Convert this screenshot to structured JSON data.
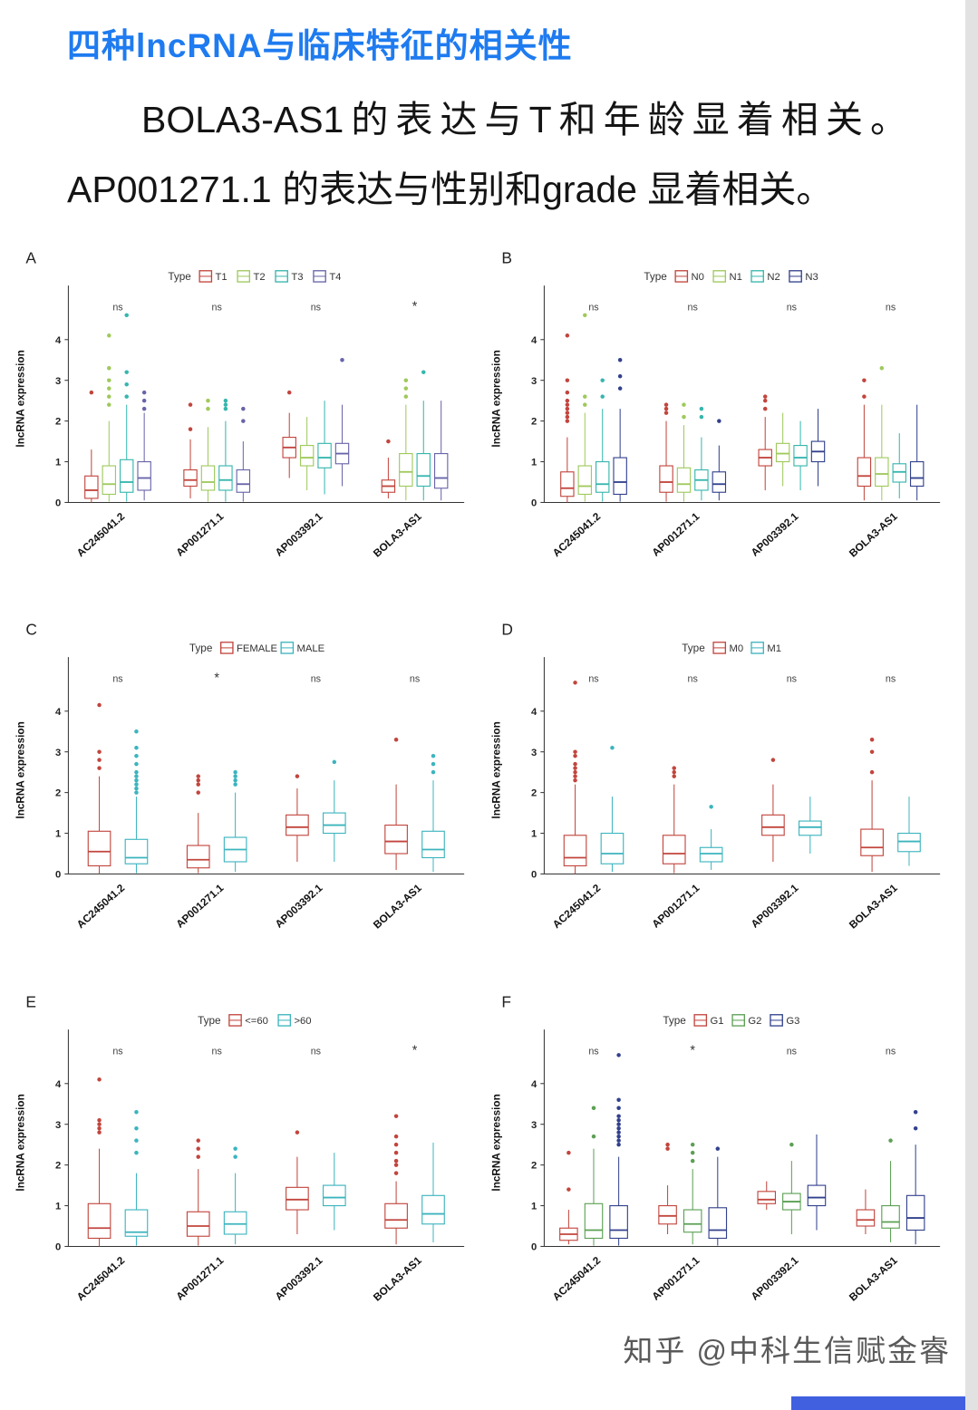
{
  "page": {
    "heading": "四种lncRNA与临床特征的相关性",
    "paragraph": "BOLA3-AS1的表达与T和年龄显着相关。AP001271.1 的表达与性别和grade 显着相关。",
    "watermark": "知乎 @中科生信赋金睿"
  },
  "colors": {
    "heading_blue": "#1E7BF0",
    "red": "#C2453D",
    "yellow_green": "#9FC95C",
    "teal": "#36B6AD",
    "slate_purple": "#6864A8",
    "navy": "#32418D",
    "cyan_teal": "#3CB4BE",
    "green": "#5BA053"
  },
  "chart_data": {
    "type": "boxplot-grid",
    "ylabel": "lncRNA expression",
    "legend_title": "Type",
    "categories": [
      "AC245041.2",
      "AP001271.1",
      "AP003392.1",
      "BOLA3-AS1"
    ],
    "yticks": [
      0,
      1,
      2,
      3,
      4
    ],
    "ymax": 5.1,
    "ylim": [
      0,
      5.1
    ],
    "legend_position": "top",
    "grid": false,
    "panels": [
      {
        "label": "A",
        "groups": [
          {
            "name": "T1",
            "color": "#C2453D"
          },
          {
            "name": "T2",
            "color": "#9FC95C"
          },
          {
            "name": "T3",
            "color": "#36B6AD"
          },
          {
            "name": "T4",
            "color": "#6864A8"
          }
        ],
        "sig": [
          "ns",
          "ns",
          "ns",
          "*"
        ],
        "boxes": [
          [
            [
              0,
              0.1,
              0.3,
              0.65,
              1.3,
              [
                2.7
              ]
            ],
            [
              0.02,
              0.2,
              0.45,
              0.9,
              2.0,
              [
                2.4,
                2.6,
                2.8,
                3.0,
                3.3,
                4.1
              ]
            ],
            [
              0.02,
              0.25,
              0.5,
              1.05,
              2.4,
              [
                2.6,
                2.9,
                3.2,
                4.6
              ]
            ],
            [
              0.05,
              0.3,
              0.6,
              1.0,
              2.2,
              [
                2.3,
                2.5,
                2.7
              ]
            ]
          ],
          [
            [
              0.1,
              0.4,
              0.55,
              0.8,
              1.55,
              [
                1.8,
                2.4
              ]
            ],
            [
              0.02,
              0.3,
              0.5,
              0.9,
              1.85,
              [
                2.3,
                2.5
              ]
            ],
            [
              0.02,
              0.3,
              0.55,
              0.9,
              2.0,
              [
                2.3,
                2.4,
                2.5
              ]
            ],
            [
              0.02,
              0.25,
              0.45,
              0.8,
              1.5,
              [
                2.0,
                2.3
              ]
            ]
          ],
          [
            [
              0.6,
              1.1,
              1.35,
              1.6,
              2.2,
              [
                2.7
              ]
            ],
            [
              0.3,
              0.9,
              1.1,
              1.4,
              2.1,
              []
            ],
            [
              0.2,
              0.85,
              1.1,
              1.45,
              2.5,
              []
            ],
            [
              0.4,
              0.95,
              1.2,
              1.45,
              2.4,
              [
                3.5
              ]
            ]
          ],
          [
            [
              0.1,
              0.25,
              0.4,
              0.55,
              1.1,
              [
                1.5
              ]
            ],
            [
              0.05,
              0.4,
              0.75,
              1.2,
              2.4,
              [
                2.6,
                2.8,
                3.0
              ]
            ],
            [
              0.05,
              0.4,
              0.65,
              1.2,
              2.5,
              [
                3.2
              ]
            ],
            [
              0.05,
              0.35,
              0.6,
              1.2,
              2.5,
              []
            ]
          ]
        ]
      },
      {
        "label": "B",
        "groups": [
          {
            "name": "N0",
            "color": "#C2453D"
          },
          {
            "name": "N1",
            "color": "#9FC95C"
          },
          {
            "name": "N2",
            "color": "#36B6AD"
          },
          {
            "name": "N3",
            "color": "#32418D"
          }
        ],
        "sig": [
          "ns",
          "ns",
          "ns",
          "ns"
        ],
        "boxes": [
          [
            [
              0,
              0.15,
              0.35,
              0.75,
              1.6,
              [
                2.0,
                2.1,
                2.2,
                2.3,
                2.4,
                2.5,
                2.7,
                3.0,
                4.1
              ]
            ],
            [
              0.02,
              0.2,
              0.4,
              0.9,
              2.2,
              [
                2.4,
                2.6,
                4.6
              ]
            ],
            [
              0.02,
              0.25,
              0.45,
              1.0,
              2.3,
              [
                2.6,
                3.0
              ]
            ],
            [
              0.02,
              0.2,
              0.5,
              1.1,
              2.3,
              [
                2.8,
                3.1,
                3.5
              ]
            ]
          ],
          [
            [
              0.02,
              0.25,
              0.5,
              0.9,
              2.0,
              [
                2.2,
                2.3,
                2.4
              ]
            ],
            [
              0.02,
              0.25,
              0.45,
              0.85,
              1.9,
              [
                2.1,
                2.4
              ]
            ],
            [
              0.05,
              0.3,
              0.55,
              0.8,
              1.6,
              [
                2.1,
                2.3
              ]
            ],
            [
              0.05,
              0.25,
              0.45,
              0.75,
              1.4,
              [
                2.0
              ]
            ]
          ],
          [
            [
              0.3,
              0.9,
              1.1,
              1.3,
              2.1,
              [
                2.3,
                2.5,
                2.6
              ]
            ],
            [
              0.4,
              1.0,
              1.2,
              1.45,
              2.2,
              []
            ],
            [
              0.3,
              0.9,
              1.1,
              1.4,
              2.0,
              []
            ],
            [
              0.4,
              1.0,
              1.25,
              1.5,
              2.3,
              []
            ]
          ],
          [
            [
              0.05,
              0.4,
              0.65,
              1.1,
              2.4,
              [
                2.6,
                3.0
              ]
            ],
            [
              0.05,
              0.4,
              0.7,
              1.1,
              2.4,
              [
                3.3
              ]
            ],
            [
              0.1,
              0.5,
              0.75,
              0.95,
              1.7,
              []
            ],
            [
              0.05,
              0.4,
              0.6,
              1.0,
              2.4,
              []
            ]
          ]
        ]
      },
      {
        "label": "C",
        "groups": [
          {
            "name": "FEMALE",
            "color": "#C2453D"
          },
          {
            "name": "MALE",
            "color": "#3CB4BE"
          }
        ],
        "sig": [
          "ns",
          "*",
          "ns",
          "ns"
        ],
        "boxes": [
          [
            [
              0,
              0.2,
              0.55,
              1.05,
              2.4,
              [
                2.6,
                2.8,
                3.0,
                4.15
              ]
            ],
            [
              0.02,
              0.25,
              0.4,
              0.85,
              1.9,
              [
                2.0,
                2.1,
                2.2,
                2.3,
                2.4,
                2.5,
                2.7,
                2.9,
                3.1,
                3.5
              ]
            ]
          ],
          [
            [
              0.02,
              0.15,
              0.35,
              0.7,
              1.5,
              [
                2.0,
                2.2,
                2.3,
                2.4
              ]
            ],
            [
              0.05,
              0.3,
              0.6,
              0.9,
              2.0,
              [
                2.2,
                2.3,
                2.4,
                2.5
              ]
            ]
          ],
          [
            [
              0.3,
              0.95,
              1.15,
              1.45,
              2.1,
              [
                2.4
              ]
            ],
            [
              0.3,
              1.0,
              1.2,
              1.5,
              2.3,
              [
                2.75
              ]
            ]
          ],
          [
            [
              0.1,
              0.5,
              0.8,
              1.2,
              2.2,
              [
                3.3
              ]
            ],
            [
              0.05,
              0.4,
              0.6,
              1.05,
              2.3,
              [
                2.5,
                2.7,
                2.9
              ]
            ]
          ]
        ]
      },
      {
        "label": "D",
        "groups": [
          {
            "name": "M0",
            "color": "#C2453D"
          },
          {
            "name": "M1",
            "color": "#3CB4BE"
          }
        ],
        "sig": [
          "ns",
          "ns",
          "ns",
          "ns"
        ],
        "boxes": [
          [
            [
              0,
              0.2,
              0.4,
              0.95,
              2.2,
              [
                2.3,
                2.4,
                2.5,
                2.6,
                2.7,
                2.9,
                3.0,
                4.7
              ]
            ],
            [
              0.05,
              0.25,
              0.5,
              1.0,
              1.9,
              [
                3.1
              ]
            ]
          ],
          [
            [
              0.02,
              0.25,
              0.5,
              0.95,
              2.2,
              [
                2.4,
                2.5,
                2.6
              ]
            ],
            [
              0.1,
              0.3,
              0.5,
              0.65,
              1.1,
              [
                1.65
              ]
            ]
          ],
          [
            [
              0.3,
              0.95,
              1.15,
              1.45,
              2.2,
              [
                2.8
              ]
            ],
            [
              0.5,
              0.95,
              1.15,
              1.3,
              1.9,
              []
            ]
          ],
          [
            [
              0.05,
              0.45,
              0.65,
              1.1,
              2.3,
              [
                2.5,
                3.0,
                3.3
              ]
            ],
            [
              0.2,
              0.55,
              0.8,
              1.0,
              1.9,
              []
            ]
          ]
        ]
      },
      {
        "label": "E",
        "groups": [
          {
            "name": "<=60",
            "color": "#C2453D"
          },
          {
            "name": ">60",
            "color": "#3CB4BE"
          }
        ],
        "sig": [
          "ns",
          "ns",
          "ns",
          "*"
        ],
        "boxes": [
          [
            [
              0,
              0.2,
              0.45,
              1.05,
              2.4,
              [
                2.8,
                2.9,
                3.0,
                3.1,
                4.1
              ]
            ],
            [
              0.02,
              0.25,
              0.35,
              0.9,
              1.8,
              [
                2.3,
                2.6,
                2.9,
                3.3
              ]
            ]
          ],
          [
            [
              0.02,
              0.25,
              0.5,
              0.85,
              1.9,
              [
                2.2,
                2.4,
                2.6
              ]
            ],
            [
              0.05,
              0.3,
              0.55,
              0.85,
              1.8,
              [
                2.2,
                2.4
              ]
            ]
          ],
          [
            [
              0.3,
              0.9,
              1.15,
              1.45,
              2.2,
              [
                2.8
              ]
            ],
            [
              0.4,
              1.0,
              1.2,
              1.5,
              2.3,
              []
            ]
          ],
          [
            [
              0.05,
              0.45,
              0.65,
              1.05,
              1.6,
              [
                1.8,
                2.0,
                2.1,
                2.3,
                2.5,
                2.7,
                3.2
              ]
            ],
            [
              0.1,
              0.55,
              0.8,
              1.25,
              2.55,
              []
            ]
          ]
        ]
      },
      {
        "label": "F",
        "groups": [
          {
            "name": "G1",
            "color": "#C2453D"
          },
          {
            "name": "G2",
            "color": "#5BA053"
          },
          {
            "name": "G3",
            "color": "#32418D"
          }
        ],
        "sig": [
          "ns",
          "*",
          "ns",
          "ns"
        ],
        "boxes": [
          [
            [
              0.05,
              0.15,
              0.3,
              0.45,
              0.9,
              [
                1.4,
                2.3
              ]
            ],
            [
              0.02,
              0.2,
              0.4,
              1.05,
              2.4,
              [
                2.7,
                3.4
              ]
            ],
            [
              0.02,
              0.2,
              0.4,
              1.0,
              2.2,
              [
                2.5,
                2.6,
                2.7,
                2.8,
                2.9,
                3.0,
                3.1,
                3.2,
                3.4,
                3.6,
                4.7
              ]
            ]
          ],
          [
            [
              0.3,
              0.55,
              0.75,
              1.0,
              1.5,
              [
                2.4,
                2.5
              ]
            ],
            [
              0.05,
              0.35,
              0.55,
              0.9,
              1.9,
              [
                2.1,
                2.3,
                2.5
              ]
            ],
            [
              0.02,
              0.2,
              0.4,
              0.95,
              2.2,
              [
                2.4
              ]
            ]
          ],
          [
            [
              0.9,
              1.05,
              1.15,
              1.35,
              1.6,
              []
            ],
            [
              0.3,
              0.9,
              1.1,
              1.3,
              2.1,
              [
                2.5
              ]
            ],
            [
              0.4,
              1.0,
              1.2,
              1.5,
              2.75,
              []
            ]
          ],
          [
            [
              0.3,
              0.5,
              0.65,
              0.9,
              1.4,
              []
            ],
            [
              0.1,
              0.45,
              0.6,
              1.0,
              2.1,
              [
                2.6
              ]
            ],
            [
              0.05,
              0.4,
              0.7,
              1.25,
              2.5,
              [
                2.9,
                3.3
              ]
            ]
          ]
        ]
      }
    ]
  }
}
